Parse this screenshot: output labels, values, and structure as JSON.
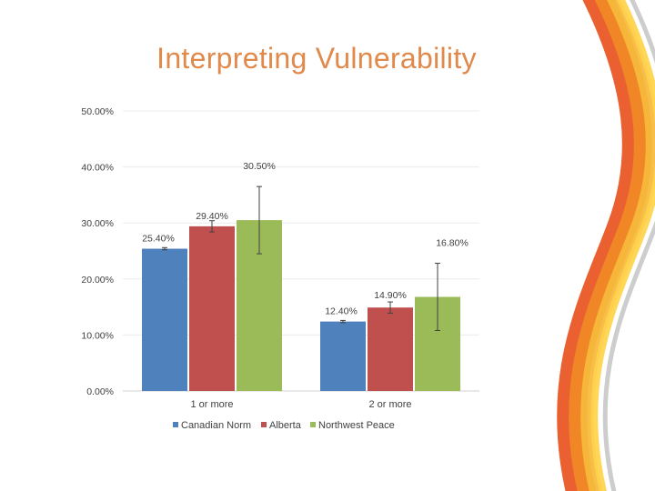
{
  "slide": {
    "title": "Interpreting Vulnerability"
  },
  "chart_data": {
    "type": "bar",
    "categories": [
      "1 or more",
      "2 or more"
    ],
    "series": [
      {
        "name": "Canadian Norm",
        "color": "#4f81bd",
        "values": [
          25.4,
          12.4
        ],
        "error": [
          0.2,
          0.2
        ],
        "labels": [
          "25.40%",
          "12.40%"
        ]
      },
      {
        "name": "Alberta",
        "color": "#c0504d",
        "values": [
          29.4,
          14.9
        ],
        "error": [
          1.0,
          1.0
        ],
        "labels": [
          "29.40%",
          "14.90%"
        ]
      },
      {
        "name": "Northwest Peace",
        "color": "#9bbb59",
        "values": [
          30.5,
          16.8
        ],
        "error": [
          6.0,
          6.0
        ],
        "labels": [
          "30.50%",
          "16.80%"
        ]
      }
    ],
    "ylim": [
      0,
      50
    ],
    "yticks": [
      0,
      10,
      20,
      30,
      40,
      50
    ],
    "ytick_labels": [
      "0.00%",
      "10.00%",
      "20.00%",
      "30.00%",
      "40.00%",
      "50.00%"
    ],
    "grid": true,
    "legend": "bottom",
    "title": "",
    "xlabel": "",
    "ylabel": ""
  },
  "decor": {
    "swoosh_colors": [
      "#e8531f",
      "#f08a24",
      "#f6b93b",
      "#ffd24a",
      "#c9c9c9"
    ]
  }
}
